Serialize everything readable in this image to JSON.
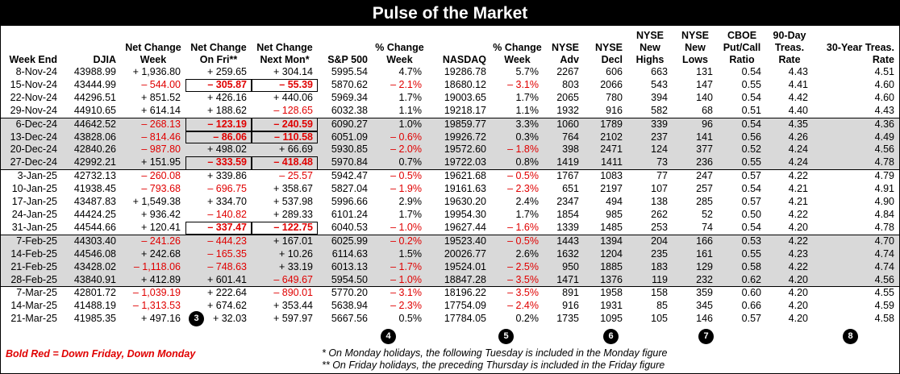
{
  "title": "Pulse of the Market",
  "columns": [
    "Week End",
    "DJIA",
    "Net Change Week",
    "Net Change On Fri**",
    "Net Change Next Mon*",
    "S&P 500",
    "% Change Week",
    "NASDAQ",
    "% Change Week",
    "NYSE Adv",
    "NYSE Decl",
    "NYSE New Highs",
    "NYSE New Lows",
    "CBOE Put/Call Ratio",
    "90-Day Treas. Rate",
    "30-Year Treas. Rate"
  ],
  "rows": [
    [
      "8-Nov-24",
      "43988.99",
      "+ 1,936.80",
      "+ 259.65",
      "+ 304.14",
      "5995.54",
      "4.7%",
      "19286.78",
      "5.7%",
      "2267",
      "606",
      "663",
      "131",
      "0.54",
      "4.43",
      "4.51"
    ],
    [
      "15-Nov-24",
      "43444.99",
      "– 544.00",
      "– 305.87",
      "– 55.39",
      "5870.62",
      "– 2.1%",
      "18680.12",
      "– 3.1%",
      "803",
      "2066",
      "543",
      "147",
      "0.55",
      "4.41",
      "4.60"
    ],
    [
      "22-Nov-24",
      "44296.51",
      "+ 851.52",
      "+ 426.16",
      "+ 440.06",
      "5969.34",
      "1.7%",
      "19003.65",
      "1.7%",
      "2065",
      "780",
      "394",
      "140",
      "0.54",
      "4.42",
      "4.60"
    ],
    [
      "29-Nov-24",
      "44910.65",
      "+ 614.14",
      "+ 188.62",
      "– 128.65",
      "6032.38",
      "1.1%",
      "19218.17",
      "1.1%",
      "1932",
      "916",
      "582",
      "68",
      "0.51",
      "4.40",
      "4.43"
    ],
    [
      "6-Dec-24",
      "44642.52",
      "– 268.13",
      "– 123.19",
      "– 240.59",
      "6090.27",
      "1.0%",
      "19859.77",
      "3.3%",
      "1060",
      "1789",
      "339",
      "96",
      "0.54",
      "4.35",
      "4.36"
    ],
    [
      "13-Dec-24",
      "43828.06",
      "– 814.46",
      "– 86.06",
      "– 110.58",
      "6051.09",
      "– 0.6%",
      "19926.72",
      "0.3%",
      "764",
      "2102",
      "237",
      "141",
      "0.56",
      "4.26",
      "4.49"
    ],
    [
      "20-Dec-24",
      "42840.26",
      "– 987.80",
      "+ 498.02",
      "+ 66.69",
      "5930.85",
      "– 2.0%",
      "19572.60",
      "– 1.8%",
      "398",
      "2471",
      "124",
      "377",
      "0.52",
      "4.24",
      "4.56"
    ],
    [
      "27-Dec-24",
      "42992.21",
      "+ 151.95",
      "– 333.59",
      "– 418.48",
      "5970.84",
      "0.7%",
      "19722.03",
      "0.8%",
      "1419",
      "1411",
      "73",
      "236",
      "0.55",
      "4.24",
      "4.78"
    ],
    [
      "3-Jan-25",
      "42732.13",
      "– 260.08",
      "+ 339.86",
      "– 25.57",
      "5942.47",
      "– 0.5%",
      "19621.68",
      "– 0.5%",
      "1767",
      "1083",
      "77",
      "247",
      "0.57",
      "4.22",
      "4.79"
    ],
    [
      "10-Jan-25",
      "41938.45",
      "– 793.68",
      "– 696.75",
      "+ 358.67",
      "5827.04",
      "– 1.9%",
      "19161.63",
      "– 2.3%",
      "651",
      "2197",
      "107",
      "257",
      "0.54",
      "4.21",
      "4.91"
    ],
    [
      "17-Jan-25",
      "43487.83",
      "+ 1,549.38",
      "+ 334.70",
      "+ 537.98",
      "5996.66",
      "2.9%",
      "19630.20",
      "2.4%",
      "2347",
      "494",
      "138",
      "285",
      "0.57",
      "4.21",
      "4.90"
    ],
    [
      "24-Jan-25",
      "44424.25",
      "+ 936.42",
      "– 140.82",
      "+ 289.33",
      "6101.24",
      "1.7%",
      "19954.30",
      "1.7%",
      "1854",
      "985",
      "262",
      "52",
      "0.50",
      "4.22",
      "4.84"
    ],
    [
      "31-Jan-25",
      "44544.66",
      "+ 120.41",
      "– 337.47",
      "– 122.75",
      "6040.53",
      "– 1.0%",
      "19627.44",
      "– 1.6%",
      "1339",
      "1485",
      "253",
      "74",
      "0.54",
      "4.20",
      "4.78"
    ],
    [
      "7-Feb-25",
      "44303.40",
      "– 241.26",
      "– 444.23",
      "+ 167.01",
      "6025.99",
      "– 0.2%",
      "19523.40",
      "– 0.5%",
      "1443",
      "1394",
      "204",
      "166",
      "0.53",
      "4.22",
      "4.70"
    ],
    [
      "14-Feb-25",
      "44546.08",
      "+ 242.68",
      "– 165.35",
      "+ 10.26",
      "6114.63",
      "1.5%",
      "20026.77",
      "2.6%",
      "1632",
      "1204",
      "235",
      "161",
      "0.55",
      "4.23",
      "4.74"
    ],
    [
      "21-Feb-25",
      "43428.02",
      "– 1,118.06",
      "– 748.63",
      "+ 33.19",
      "6013.13",
      "– 1.7%",
      "19524.01",
      "– 2.5%",
      "950",
      "1885",
      "183",
      "129",
      "0.58",
      "4.22",
      "4.74"
    ],
    [
      "28-Feb-25",
      "43840.91",
      "+ 412.89",
      "+ 601.41",
      "– 649.67",
      "5954.50",
      "– 1.0%",
      "18847.28",
      "– 3.5%",
      "1471",
      "1376",
      "119",
      "232",
      "0.62",
      "4.20",
      "4.56"
    ],
    [
      "7-Mar-25",
      "42801.72",
      "– 1,039.19",
      "+ 222.64",
      "– 890.01",
      "5770.20",
      "– 3.1%",
      "18196.22",
      "– 3.5%",
      "891",
      "1958",
      "158",
      "359",
      "0.60",
      "4.20",
      "4.55"
    ],
    [
      "14-Mar-25",
      "41488.19",
      "– 1,313.53",
      "+ 674.62",
      "+ 353.44",
      "5638.94",
      "– 2.3%",
      "17754.09",
      "– 2.4%",
      "916",
      "1931",
      "85",
      "345",
      "0.66",
      "4.20",
      "4.59"
    ],
    [
      "21-Mar-25",
      "41985.35",
      "+ 497.16",
      "+ 32.03",
      "+ 597.97",
      "5667.56",
      "0.5%",
      "17784.05",
      "0.2%",
      "1735",
      "1095",
      "105",
      "146",
      "0.57",
      "4.20",
      "4.58"
    ]
  ],
  "bold_red_cells": [
    [
      1,
      3
    ],
    [
      1,
      4
    ],
    [
      4,
      3
    ],
    [
      4,
      4
    ],
    [
      5,
      3
    ],
    [
      5,
      4
    ],
    [
      7,
      3
    ],
    [
      7,
      4
    ],
    [
      12,
      3
    ],
    [
      12,
      4
    ]
  ],
  "shaded_rows": [
    4,
    5,
    6,
    7,
    13,
    14,
    15,
    16
  ],
  "badges": [
    "3",
    "4",
    "5",
    "6",
    "7",
    "8"
  ],
  "legend": "Bold Red = Down Friday, Down Monday",
  "footnote1": "* On Monday holidays, the following Tuesday is included in the Monday figure",
  "footnote2": "** On Friday holidays, the preceding Thursday is included in the Friday figure",
  "colors": {
    "negative": "#e00000",
    "shade": "#d9d9d9",
    "title_bg": "#000000"
  }
}
